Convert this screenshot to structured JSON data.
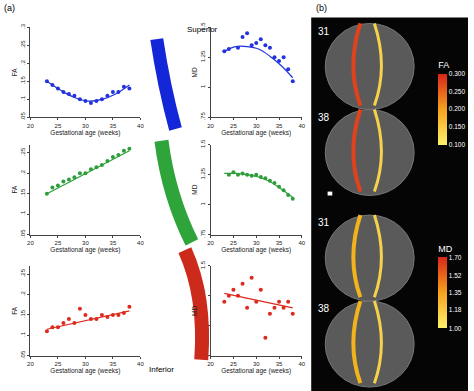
{
  "chart_data": [
    {
      "type": "scatter",
      "xlabel": "Gestational age (weeks)",
      "ylabel": "FA",
      "color": "#2233dd",
      "x": [
        23,
        24,
        25,
        26,
        27,
        28,
        29,
        30,
        31,
        32,
        33,
        34,
        35,
        36,
        37,
        38
      ],
      "values": [
        0.15,
        0.14,
        0.13,
        0.12,
        0.115,
        0.11,
        0.1,
        0.095,
        0.09,
        0.095,
        0.1,
        0.11,
        0.12,
        0.12,
        0.135,
        0.13
      ],
      "fit": {
        "x": [
          23,
          25.5,
          28,
          30.5,
          33,
          35.5,
          38
        ],
        "values": [
          0.15,
          0.125,
          0.105,
          0.095,
          0.1,
          0.115,
          0.14
        ]
      },
      "xlim": [
        20,
        40
      ],
      "ylim": [
        0.05,
        0.3
      ],
      "xticks": [
        20,
        25,
        30,
        35,
        40
      ],
      "yticks": [
        {
          "value": 0.05,
          "label": ".05"
        },
        {
          "value": 0.1,
          "label": ".1"
        },
        {
          "value": 0.15,
          "label": ".15"
        },
        {
          "value": 0.2,
          "label": ".2"
        },
        {
          "value": 0.25,
          "label": ".25"
        },
        {
          "value": 0.3,
          "label": ".3"
        }
      ]
    },
    {
      "type": "scatter",
      "xlabel": "Gestational age (weeks)",
      "ylabel": "MD",
      "color": "#2233dd",
      "x": [
        23,
        24,
        26,
        27,
        28,
        29,
        30,
        31,
        32,
        33,
        34,
        35,
        36,
        37,
        38
      ],
      "values": [
        1.3,
        1.32,
        1.33,
        1.42,
        1.45,
        1.35,
        1.37,
        1.4,
        1.35,
        1.33,
        1.25,
        1.22,
        1.25,
        1.15,
        1.05
      ],
      "fit": {
        "x": [
          23,
          25.5,
          28,
          30.5,
          33,
          35.5,
          38
        ],
        "values": [
          1.3,
          1.34,
          1.34,
          1.32,
          1.26,
          1.18,
          1.08
        ]
      },
      "xlim": [
        20,
        40
      ],
      "ylim": [
        0.75,
        1.5
      ],
      "xticks": [
        20,
        25,
        30,
        35,
        40
      ],
      "yticks": [
        {
          "value": 0.75,
          "label": ".75"
        },
        1,
        1.25,
        1.5
      ]
    },
    {
      "type": "scatter",
      "xlabel": "Gestational age (weeks)",
      "ylabel": "FA",
      "color": "#2e9e3a",
      "x": [
        23,
        24,
        25,
        26,
        27,
        28,
        29,
        30,
        31,
        32,
        33,
        34,
        35,
        36,
        37,
        38
      ],
      "values": [
        0.15,
        0.165,
        0.17,
        0.18,
        0.185,
        0.19,
        0.2,
        0.2,
        0.21,
        0.215,
        0.22,
        0.23,
        0.24,
        0.245,
        0.255,
        0.26
      ],
      "fit": {
        "x": [
          23,
          38
        ],
        "values": [
          0.15,
          0.255
        ]
      },
      "xlim": [
        20,
        40
      ],
      "ylim": [
        0.05,
        0.27
      ],
      "xticks": [
        20,
        25,
        30,
        35,
        40
      ],
      "yticks": [
        {
          "value": 0.05,
          "label": ".05"
        },
        {
          "value": 0.1,
          "label": ".1"
        },
        {
          "value": 0.15,
          "label": ".15"
        },
        {
          "value": 0.2,
          "label": ".2"
        },
        {
          "value": 0.25,
          "label": ".25"
        }
      ]
    },
    {
      "type": "scatter",
      "xlabel": "Gestational age (weeks)",
      "ylabel": "MD",
      "color": "#2e9e3a",
      "x": [
        24,
        25,
        26,
        27,
        28,
        29,
        30,
        31,
        32,
        33,
        34,
        35,
        36,
        37,
        38
      ],
      "values": [
        1.25,
        1.27,
        1.25,
        1.26,
        1.25,
        1.24,
        1.25,
        1.23,
        1.22,
        1.2,
        1.18,
        1.15,
        1.12,
        1.08,
        1.05
      ],
      "fit": {
        "x": [
          23,
          25.5,
          28,
          30.5,
          33,
          35.5,
          38
        ],
        "values": [
          1.26,
          1.26,
          1.25,
          1.23,
          1.19,
          1.13,
          1.06
        ]
      },
      "xlim": [
        20,
        40
      ],
      "ylim": [
        0.75,
        1.5
      ],
      "xticks": [
        20,
        25,
        30,
        35,
        40
      ],
      "yticks": [
        {
          "value": 0.75,
          "label": ".75"
        },
        1,
        1.25,
        1.5
      ]
    },
    {
      "type": "scatter",
      "xlabel": "Gestational age (weeks)",
      "ylabel": "FA",
      "color": "#dd2a1e",
      "x": [
        23,
        24,
        25,
        26,
        27,
        28,
        29,
        30,
        31,
        32,
        33,
        34,
        35,
        36,
        37,
        38
      ],
      "values": [
        0.11,
        0.12,
        0.12,
        0.13,
        0.14,
        0.13,
        0.165,
        0.15,
        0.14,
        0.14,
        0.15,
        0.145,
        0.15,
        0.15,
        0.155,
        0.17
      ],
      "fit": {
        "x": [
          23,
          38
        ],
        "values": [
          0.115,
          0.16
        ]
      },
      "xlim": [
        20,
        40
      ],
      "ylim": [
        0.05,
        0.27
      ],
      "xticks": [
        20,
        25,
        30,
        35,
        40
      ],
      "yticks": [
        {
          "value": 0.05,
          "label": ".05"
        },
        {
          "value": 0.1,
          "label": ".1"
        },
        {
          "value": 0.15,
          "label": ".15"
        },
        {
          "value": 0.2,
          "label": ".2"
        },
        {
          "value": 0.25,
          "label": ".25"
        }
      ]
    },
    {
      "type": "scatter",
      "xlabel": "Gestational age (weeks)",
      "ylabel": "MD",
      "color": "#dd2a1e",
      "x": [
        23,
        24,
        25,
        26,
        27,
        28,
        29,
        30,
        31,
        32,
        33,
        34,
        35,
        36,
        37,
        38
      ],
      "values": [
        1.2,
        1.25,
        1.3,
        1.25,
        1.35,
        1.15,
        1.4,
        1.2,
        1.3,
        0.9,
        1.1,
        1.15,
        1.2,
        1.15,
        1.2,
        1.1
      ],
      "fit": {
        "x": [
          23,
          38
        ],
        "values": [
          1.27,
          1.15
        ]
      },
      "xlim": [
        20,
        40
      ],
      "ylim": [
        0.75,
        1.5
      ],
      "xticks": [
        20,
        25,
        30,
        35,
        40
      ],
      "yticks": [
        {
          "value": 0.75,
          "label": ".75"
        },
        1,
        1.25,
        1.5
      ]
    }
  ],
  "panel_labels": [
    "(a)",
    "(b)"
  ],
  "tract_labels": {
    "superior": "Superior",
    "inferior": "Inferior"
  },
  "brain_maps": [
    {
      "label": "FA",
      "ages": [
        "31",
        "38"
      ],
      "colorbar_range": [
        0.1,
        0.3
      ],
      "colorbar_ticks": [
        {
          "value": 0.1,
          "label": "0.100"
        },
        {
          "value": 0.15,
          "label": "0.150"
        },
        {
          "value": 0.2,
          "label": "0.200"
        },
        {
          "value": 0.25,
          "label": "0.250"
        },
        {
          "value": 0.3,
          "label": "0.300"
        }
      ]
    },
    {
      "label": "MD",
      "ages": [
        "31",
        "38"
      ],
      "colorbar_range": [
        1.0,
        1.7
      ],
      "colorbar_ticks": [
        {
          "value": 1.0,
          "label": "1.00"
        },
        {
          "value": 1.18,
          "label": "1.18"
        },
        {
          "value": 1.35,
          "label": "1.35"
        },
        {
          "value": 1.52,
          "label": "1.52"
        },
        {
          "value": 1.7,
          "label": "1.70"
        }
      ]
    }
  ]
}
